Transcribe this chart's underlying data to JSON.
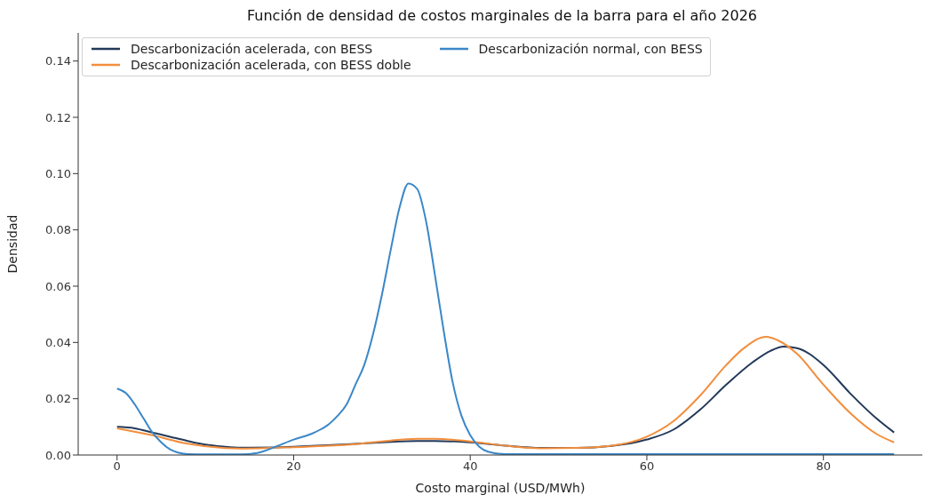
{
  "chart_data": {
    "type": "line",
    "title": "Función de densidad de costos marginales de la barra para el año 2026",
    "xlabel": "Costo marginal (USD/MWh)",
    "ylabel": "Densidad",
    "xlim": [
      -4.4,
      91.2
    ],
    "ylim": [
      0,
      0.15
    ],
    "xticks": [
      0,
      20,
      40,
      60,
      80
    ],
    "yticks": [
      {
        "value": 0,
        "label": "0.00"
      },
      {
        "value": 0.02,
        "label": "0.02"
      },
      {
        "value": 0.04,
        "label": "0.04"
      },
      {
        "value": 0.06,
        "label": "0.06"
      },
      {
        "value": 0.08,
        "label": "0.08"
      },
      {
        "value": 0.1,
        "label": "0.10"
      },
      {
        "value": 0.12,
        "label": "0.12"
      },
      {
        "value": 0.14,
        "label": "0.14"
      }
    ],
    "grid": false,
    "legend": "top left",
    "line_style": "solid",
    "marker": "none",
    "series": [
      {
        "name": "Descarbonización acelerada, con BESS",
        "color": "#22395a",
        "x": [
          0,
          2,
          4,
          6,
          8,
          10,
          12,
          14,
          18,
          22,
          26,
          30,
          34,
          36,
          40,
          44,
          48,
          52,
          56,
          60,
          63,
          66,
          69,
          72,
          74,
          75.5,
          77,
          80,
          83,
          86,
          88
        ],
        "values": [
          0.01,
          0.0095,
          0.008,
          0.0065,
          0.005,
          0.0037,
          0.003,
          0.0026,
          0.0027,
          0.0032,
          0.0038,
          0.0045,
          0.005,
          0.005,
          0.0045,
          0.0033,
          0.0025,
          0.0025,
          0.0032,
          0.0055,
          0.009,
          0.016,
          0.025,
          0.033,
          0.037,
          0.0385,
          0.038,
          0.032,
          0.022,
          0.013,
          0.008
        ]
      },
      {
        "name": "Descarbonización acelerada, con BESS doble",
        "color": "#f28e3c",
        "x": [
          0,
          4,
          8,
          12,
          14,
          20,
          26,
          30,
          34,
          36,
          40,
          44,
          48,
          52,
          56,
          60,
          63,
          66,
          69,
          71,
          73.5,
          75,
          77,
          80,
          83,
          86,
          88
        ],
        "values": [
          0.0095,
          0.007,
          0.004,
          0.0025,
          0.0023,
          0.0028,
          0.0036,
          0.0048,
          0.0058,
          0.0058,
          0.0048,
          0.0033,
          0.0024,
          0.0025,
          0.0033,
          0.0065,
          0.012,
          0.021,
          0.032,
          0.038,
          0.042,
          0.0405,
          0.036,
          0.025,
          0.015,
          0.0075,
          0.0045
        ]
      },
      {
        "name": "Descarbonización normal, con BESS",
        "color": "#3a87c8",
        "x": [
          0,
          1,
          2,
          3,
          4,
          5,
          6,
          7,
          8,
          10,
          14,
          16,
          18,
          20,
          22,
          23,
          24,
          25,
          26,
          27,
          28,
          29,
          30,
          31,
          32,
          33,
          34,
          35,
          36,
          37,
          38,
          39,
          40,
          41,
          42,
          44,
          48,
          60,
          88
        ],
        "values": [
          0.0236,
          0.022,
          0.018,
          0.013,
          0.008,
          0.0045,
          0.002,
          0.0008,
          0.0003,
          0.0002,
          0.0002,
          0.0008,
          0.003,
          0.0055,
          0.0075,
          0.009,
          0.011,
          0.014,
          0.018,
          0.025,
          0.032,
          0.043,
          0.057,
          0.073,
          0.088,
          0.0965,
          0.0945,
          0.083,
          0.064,
          0.044,
          0.026,
          0.014,
          0.007,
          0.003,
          0.0012,
          0.0003,
          0.0003,
          0.0003,
          0.0003
        ]
      }
    ]
  }
}
